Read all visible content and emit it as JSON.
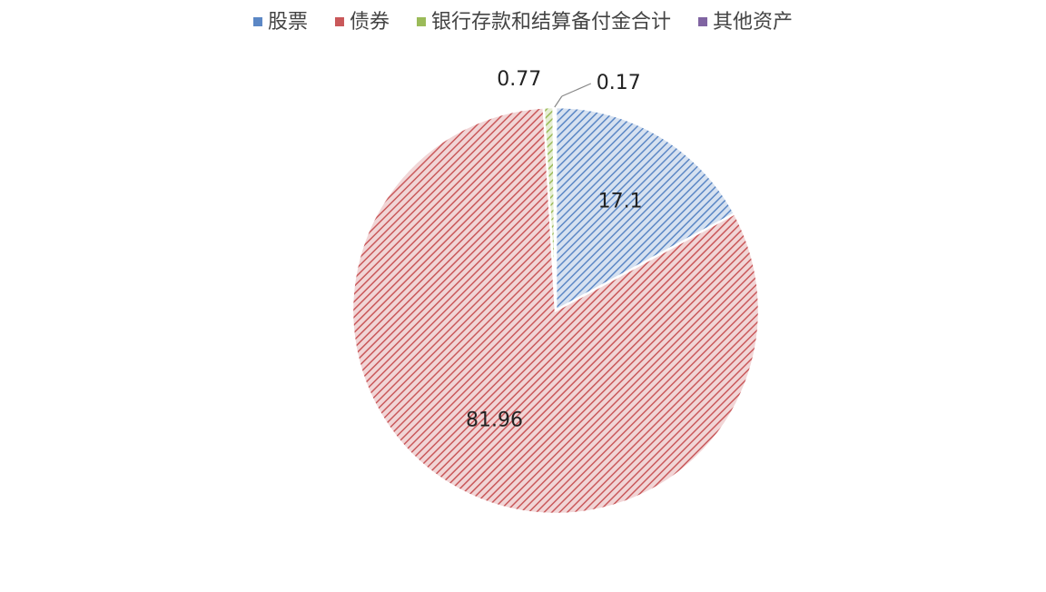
{
  "chart_data": {
    "type": "pie",
    "categories": [
      "股票",
      "债券",
      "银行存款和结算备付金合计",
      "其他资产"
    ],
    "values": [
      17.1,
      81.96,
      0.77,
      0.17
    ],
    "colors": [
      "#5b87c5",
      "#c9585a",
      "#9bbb59",
      "#8064a2"
    ],
    "legend": "top"
  }
}
